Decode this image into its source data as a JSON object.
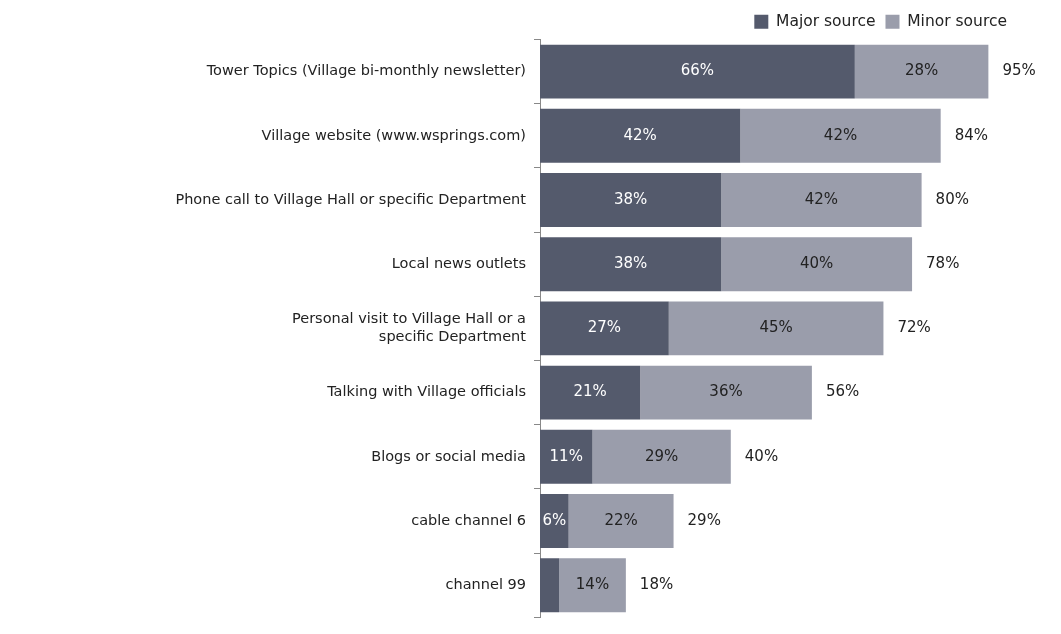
{
  "chart_data": {
    "type": "bar",
    "orientation": "horizontal",
    "stacked": true,
    "legend": "top right",
    "tick_labels": "y",
    "categories": [
      "Tower Topics (Village bi-monthly newsletter)",
      "Village website (www.wsprings.com)",
      "Phone call to Village Hall or specific Department",
      "Local news outlets",
      "Personal visit to Village Hall or a specific Department",
      "Talking with Village officials",
      "Blogs or social media",
      "cable channel 6",
      "channel 99"
    ],
    "series": [
      {
        "name": "Major source",
        "color": "#545a6c",
        "values": [
          66,
          42,
          38,
          38,
          27,
          21,
          11,
          6,
          4
        ],
        "value_labels": [
          "66%",
          "42%",
          "38%",
          "38%",
          "27%",
          "21%",
          "11%",
          "6%",
          null
        ]
      },
      {
        "name": "Minor source",
        "color": "#9a9dab",
        "values": [
          28,
          42,
          42,
          40,
          45,
          36,
          29,
          22,
          14
        ],
        "value_labels": [
          "28%",
          "42%",
          "42%",
          "40%",
          "45%",
          "36%",
          "29%",
          "22%",
          "14%"
        ]
      }
    ],
    "totals": [
      "95%",
      "84%",
      "80%",
      "78%",
      "72%",
      "56%",
      "40%",
      "29%",
      "18%"
    ]
  }
}
